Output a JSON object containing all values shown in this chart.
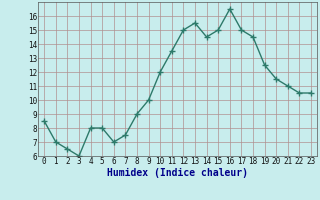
{
  "x": [
    0,
    1,
    2,
    3,
    4,
    5,
    6,
    7,
    8,
    9,
    10,
    11,
    12,
    13,
    14,
    15,
    16,
    17,
    18,
    19,
    20,
    21,
    22,
    23
  ],
  "y": [
    8.5,
    7.0,
    6.5,
    6.0,
    8.0,
    8.0,
    7.0,
    7.5,
    9.0,
    10.0,
    12.0,
    13.5,
    15.0,
    15.5,
    14.5,
    15.0,
    16.5,
    15.0,
    14.5,
    12.5,
    11.5,
    11.0,
    10.5,
    10.5
  ],
  "line_color": "#2d7a6a",
  "marker": "+",
  "marker_size": 4,
  "bg_color": "#c8eded",
  "grid_major_color": "#b09090",
  "xlabel": "Humidex (Indice chaleur)",
  "xlabel_fontsize": 7,
  "xlabel_color": "#00008b",
  "xlim_min": -0.5,
  "xlim_max": 23.5,
  "ylim_min": 6,
  "ylim_max": 17,
  "yticks": [
    6,
    7,
    8,
    9,
    10,
    11,
    12,
    13,
    14,
    15,
    16
  ],
  "xtick_labels": [
    "0",
    "1",
    "2",
    "3",
    "4",
    "5",
    "6",
    "7",
    "8",
    "9",
    "10",
    "11",
    "12",
    "13",
    "14",
    "15",
    "16",
    "17",
    "18",
    "19",
    "20",
    "21",
    "22",
    "23"
  ],
  "tick_fontsize": 5.5,
  "line_width": 1.0
}
